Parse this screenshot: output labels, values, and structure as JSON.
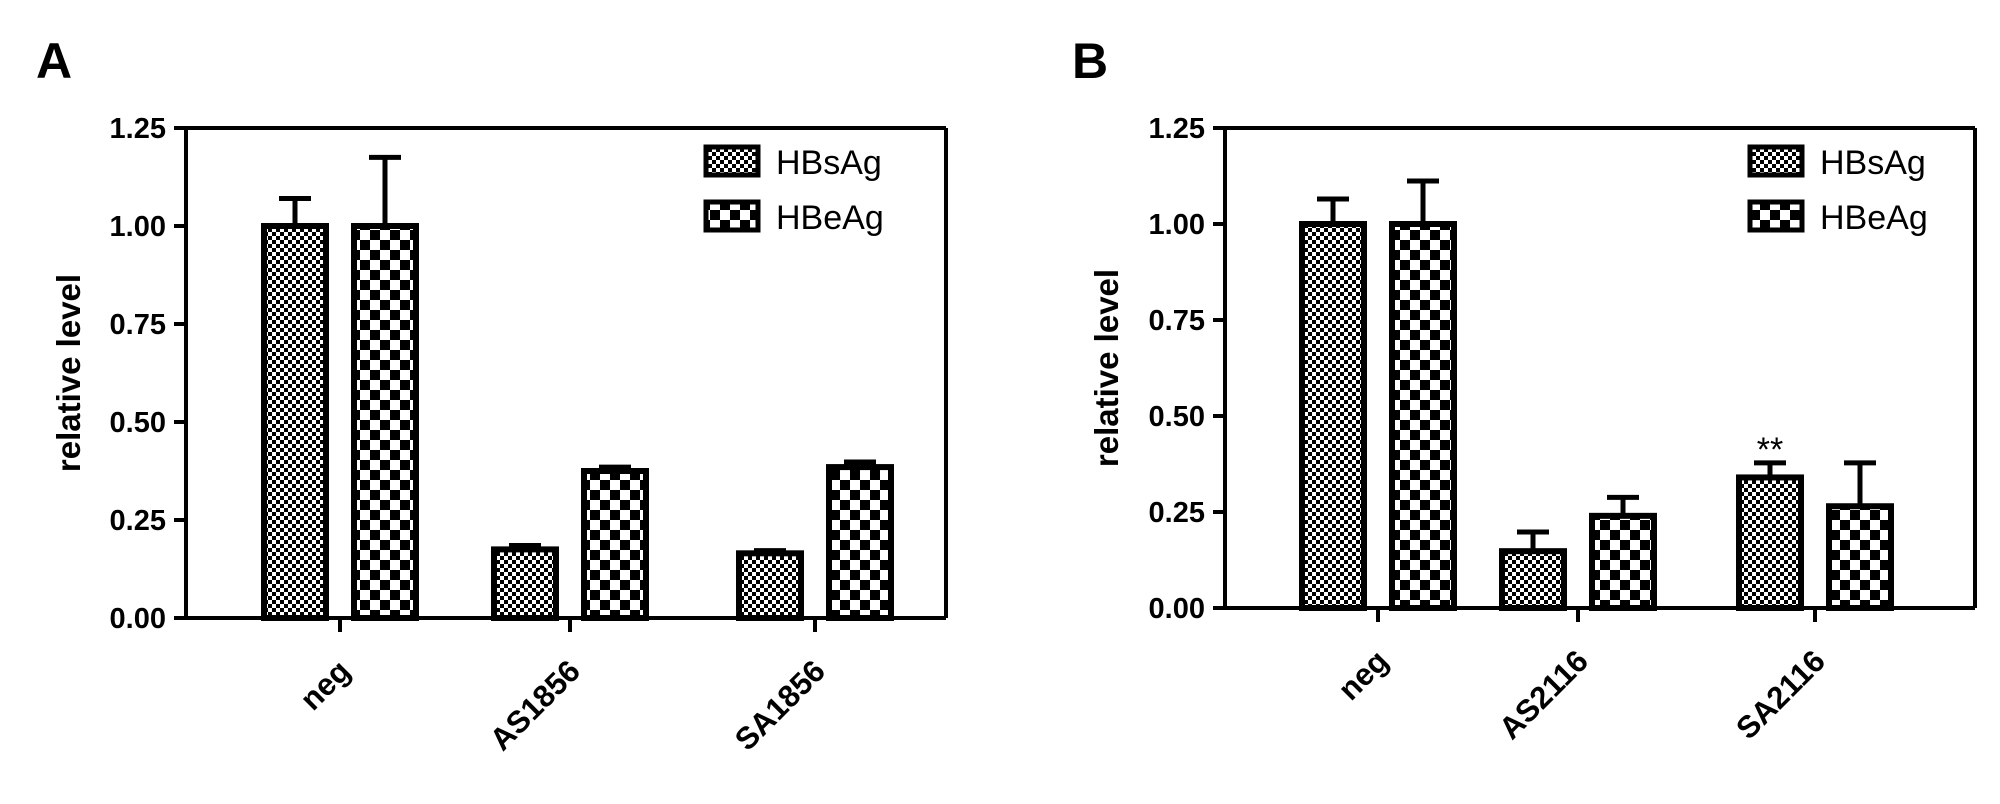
{
  "chart_data": [
    {
      "panel": "A",
      "type": "bar",
      "ylabel": "relative level",
      "xlabel": "",
      "ylim": [
        0,
        1.25
      ],
      "yticks": [
        "0.00",
        "0.25",
        "0.50",
        "0.75",
        "1.00",
        "1.25"
      ],
      "categories": [
        "neg",
        "AS1856",
        "SA1856"
      ],
      "series": [
        {
          "name": "HBsAg",
          "pattern": "fine-check",
          "values": [
            1.0,
            0.175,
            0.165
          ],
          "errors": [
            0.07,
            0.01,
            0.007
          ]
        },
        {
          "name": "HBeAg",
          "pattern": "coarse-check",
          "values": [
            1.0,
            0.375,
            0.385
          ],
          "errors": [
            0.175,
            0.01,
            0.013
          ]
        }
      ],
      "annotations": [],
      "legend": "top-right",
      "grid": false
    },
    {
      "panel": "B",
      "type": "bar",
      "ylabel": "relative level",
      "xlabel": "",
      "ylim": [
        0,
        1.25
      ],
      "yticks": [
        "0.00",
        "0.25",
        "0.50",
        "0.75",
        "1.00",
        "1.25"
      ],
      "categories": [
        "neg",
        "AS2116",
        "SA2116"
      ],
      "series": [
        {
          "name": "HBsAg",
          "pattern": "fine-check",
          "values": [
            1.0,
            0.148,
            0.34
          ],
          "errors": [
            0.065,
            0.05,
            0.038
          ]
        },
        {
          "name": "HBeAg",
          "pattern": "coarse-check",
          "values": [
            1.0,
            0.24,
            0.265
          ],
          "errors": [
            0.112,
            0.048,
            0.113
          ]
        }
      ],
      "annotations": [
        {
          "category": "SA2116",
          "series": "HBsAg",
          "text": "**"
        }
      ],
      "legend": "top-right",
      "grid": false
    }
  ]
}
